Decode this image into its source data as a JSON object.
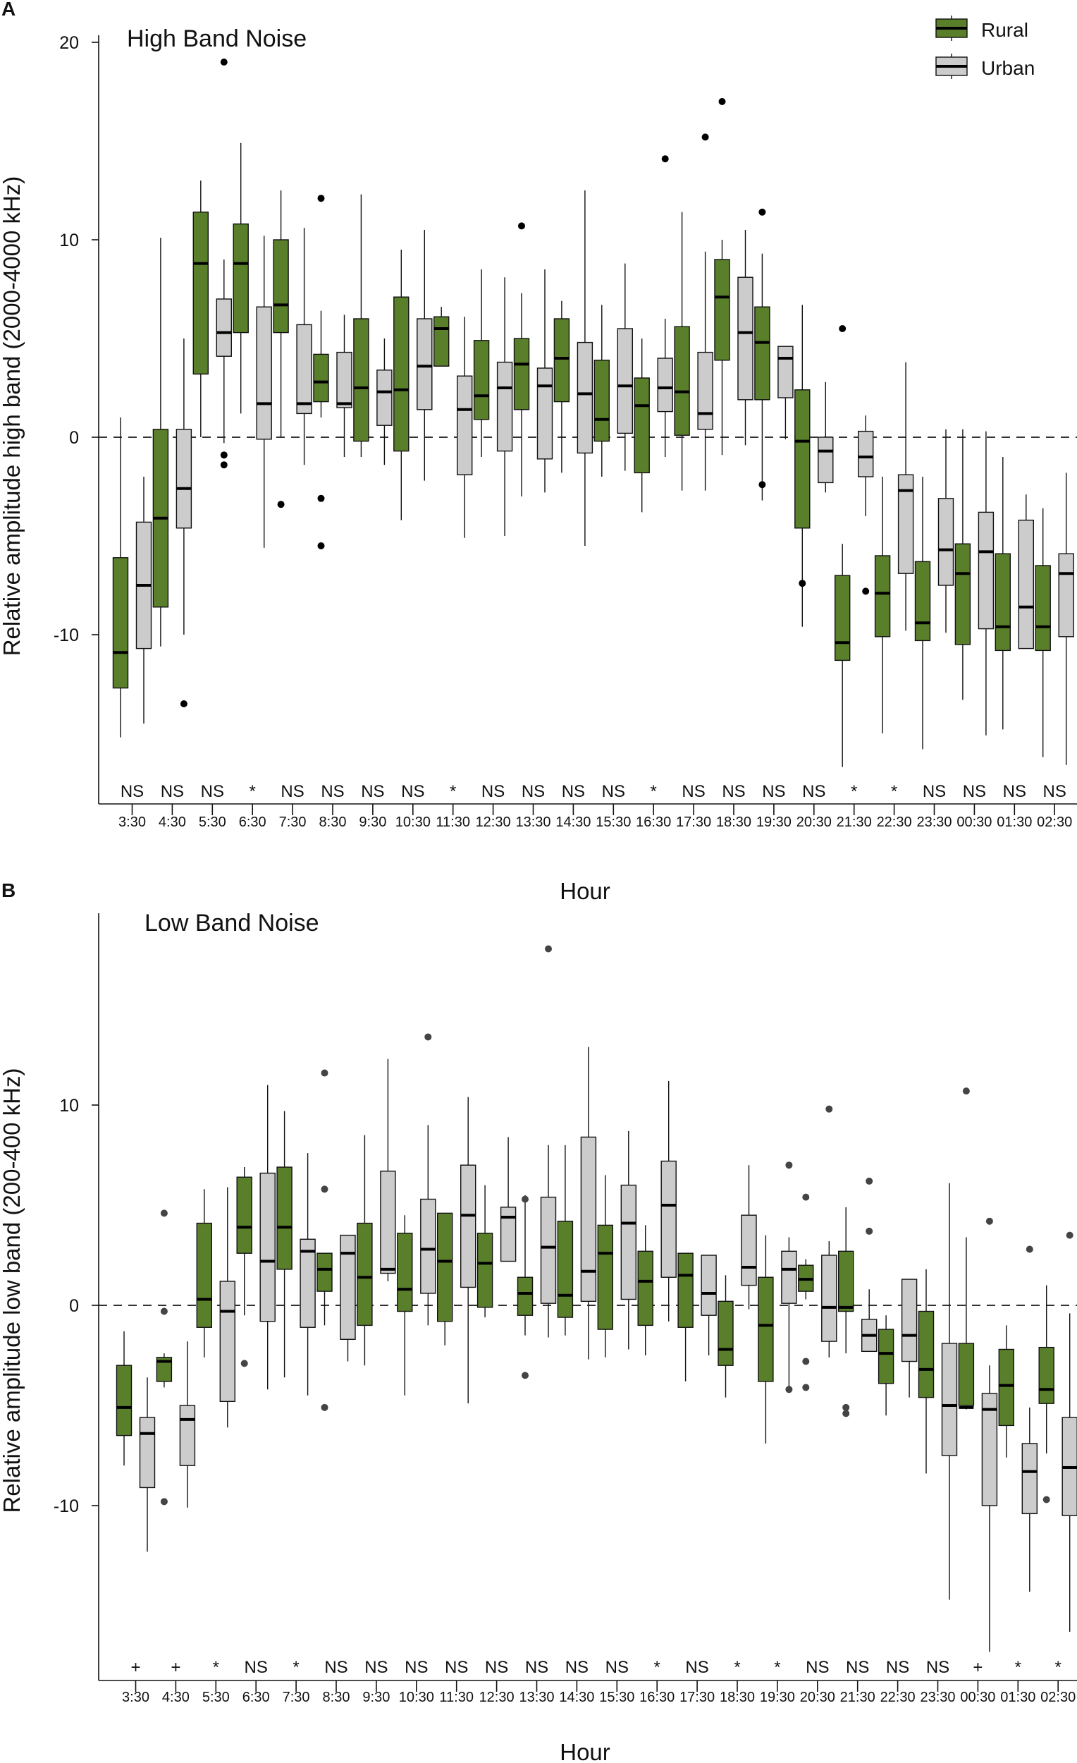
{
  "chart_data": [
    {
      "type": "boxplot",
      "panel_letter": "A",
      "title": "High Band Noise",
      "xlabel": "Hour",
      "ylabel": "Relative amplitude high band (2000-4000 kHz)",
      "ylim": [
        -18,
        21
      ],
      "yticks": [
        -10,
        0,
        10,
        20
      ],
      "zero_reference_line": 0,
      "legend_position": "top-right",
      "categories": [
        "3:30",
        "4:30",
        "5:30",
        "6:30",
        "7:30",
        "8:30",
        "9:30",
        "10:30",
        "11:30",
        "12:30",
        "13:30",
        "14:30",
        "15:30",
        "16:30",
        "17:30",
        "18:30",
        "19:30",
        "20:30",
        "21:30",
        "22:30",
        "23:30",
        "00:30",
        "01:30",
        "02:30"
      ],
      "significance": [
        "NS",
        "NS",
        "NS",
        "*",
        "NS",
        "NS",
        "NS",
        "NS",
        "*",
        "NS",
        "NS",
        "NS",
        "NS",
        "*",
        "NS",
        "NS",
        "NS",
        "NS",
        "*",
        "*",
        "NS",
        "NS",
        "NS",
        "NS"
      ],
      "series": [
        {
          "name": "Rural",
          "color": "#5a7f2b",
          "boxes": [
            [
              -15.2,
              -12.7,
              -10.9,
              -6.1,
              1.0
            ],
            [
              -10.6,
              -8.6,
              -4.1,
              0.4,
              10.1
            ],
            [
              0.0,
              3.2,
              8.8,
              11.4,
              13.0
            ],
            [
              1.2,
              5.3,
              8.8,
              10.8,
              14.9
            ],
            [
              0.0,
              5.3,
              6.7,
              10.0,
              12.5
            ],
            [
              1.0,
              1.8,
              2.8,
              4.2,
              6.4
            ],
            [
              -1.0,
              -0.2,
              2.5,
              6.0,
              12.3
            ],
            [
              -4.2,
              -0.7,
              2.4,
              7.1,
              9.5
            ],
            [
              3.6,
              3.6,
              5.5,
              6.1,
              6.6
            ],
            [
              -1.0,
              0.9,
              2.1,
              4.9,
              8.5
            ],
            [
              -3.0,
              1.4,
              3.7,
              5.0,
              7.3
            ],
            [
              -1.8,
              1.8,
              4.0,
              6.0,
              6.9
            ],
            [
              -2.0,
              -0.2,
              0.9,
              3.9,
              6.7
            ],
            [
              -3.8,
              -1.8,
              1.6,
              3.0,
              5.0
            ],
            [
              -2.7,
              0.1,
              2.3,
              5.6,
              11.4
            ],
            [
              -0.9,
              3.9,
              7.1,
              9.0,
              10.0
            ],
            [
              -3.2,
              1.9,
              4.8,
              6.6,
              9.3
            ],
            [
              -9.6,
              -4.6,
              -0.2,
              2.4,
              6.7
            ],
            [
              -16.7,
              -11.3,
              -10.4,
              -7.0,
              -5.4
            ],
            [
              -15.0,
              -10.1,
              -7.9,
              -6.0,
              -2.0
            ],
            [
              -15.8,
              -10.3,
              -9.4,
              -6.3,
              -2.0
            ],
            [
              -13.3,
              -10.5,
              -6.9,
              -5.4,
              0.4
            ],
            [
              -14.8,
              -10.8,
              -9.6,
              -5.9,
              -1.0
            ],
            [
              -16.2,
              -10.8,
              -9.6,
              -6.5,
              -3.6
            ]
          ],
          "outliers": [
            [],
            [],
            [],
            [],
            [
              -3.4
            ],
            [
              12.1,
              -3.1,
              -5.5
            ],
            [],
            [],
            [],
            [],
            [
              10.7
            ],
            [],
            [],
            [],
            [],
            [
              17.0
            ],
            [
              11.4,
              -2.4
            ],
            [
              -7.4
            ],
            [
              5.5
            ],
            [],
            [],
            [],
            [],
            []
          ]
        },
        {
          "name": "Urban",
          "color": "#cccccc",
          "boxes": [
            [
              -14.5,
              -10.7,
              -7.5,
              -4.3,
              -2.0
            ],
            [
              -10.0,
              -4.6,
              -2.6,
              0.4,
              5.0
            ],
            [
              -0.3,
              4.1,
              5.3,
              7.0,
              9.0
            ],
            [
              -5.6,
              -0.1,
              1.7,
              6.6,
              10.2
            ],
            [
              -1.4,
              1.2,
              1.7,
              5.7,
              10.6
            ],
            [
              -1.0,
              1.5,
              1.7,
              4.3,
              6.2
            ],
            [
              -1.4,
              0.6,
              2.3,
              3.4,
              5.0
            ],
            [
              -2.2,
              1.4,
              3.6,
              6.0,
              10.5
            ],
            [
              -5.1,
              -1.9,
              1.4,
              3.1,
              6.1
            ],
            [
              -5.0,
              -0.7,
              2.5,
              3.8,
              8.1
            ],
            [
              -2.8,
              -1.1,
              2.6,
              3.5,
              8.5
            ],
            [
              -5.5,
              -0.8,
              2.2,
              4.8,
              12.5
            ],
            [
              -1.7,
              0.2,
              2.6,
              5.5,
              8.8
            ],
            [
              -1.0,
              1.3,
              2.5,
              4.0,
              6.0
            ],
            [
              -2.7,
              0.4,
              1.2,
              4.3,
              9.4
            ],
            [
              -0.4,
              1.9,
              5.3,
              8.1,
              10.5
            ],
            [
              -0.1,
              2.0,
              4.0,
              4.6,
              4.6
            ],
            [
              -2.8,
              -2.3,
              -0.7,
              0.0,
              2.8
            ],
            [
              -4.0,
              -2.0,
              -1.0,
              0.3,
              1.1
            ],
            [
              -9.8,
              -6.9,
              -2.7,
              -1.9,
              3.8
            ],
            [
              -9.9,
              -7.5,
              -5.7,
              -3.1,
              0.4
            ],
            [
              -15.1,
              -9.7,
              -5.8,
              -3.8,
              0.3
            ],
            [
              -10.7,
              -10.7,
              -8.6,
              -4.2,
              -2.9
            ],
            [
              -16.6,
              -10.1,
              -6.9,
              -5.9,
              -1.8
            ]
          ],
          "outliers": [
            [],
            [
              -13.5
            ],
            [
              19.0,
              -0.9,
              -1.4
            ],
            [],
            [],
            [],
            [],
            [],
            [],
            [],
            [],
            [],
            [],
            [
              14.1
            ],
            [
              15.2
            ],
            [],
            [],
            [],
            [
              -7.8
            ],
            [],
            [],
            [],
            [],
            []
          ]
        }
      ]
    },
    {
      "type": "boxplot",
      "panel_letter": "B",
      "title": "Low Band Noise",
      "xlabel": "Hour",
      "ylabel": "Relative amplitude low  band (200-400 kHz)",
      "ylim": [
        -18,
        20
      ],
      "yticks": [
        -10,
        0,
        10
      ],
      "zero_reference_line": 0,
      "categories": [
        "3:30",
        "4:30",
        "5:30",
        "6:30",
        "7:30",
        "8:30",
        "9:30",
        "10:30",
        "11:30",
        "12:30",
        "13:30",
        "14:30",
        "15:30",
        "16:30",
        "17:30",
        "18:30",
        "19:30",
        "20:30",
        "21:30",
        "22:30",
        "23:30",
        "00:30",
        "01:30",
        "02:30"
      ],
      "significance": [
        "+",
        "+",
        "*",
        "NS",
        "*",
        "NS",
        "NS",
        "NS",
        "NS",
        "NS",
        "NS",
        "NS",
        "NS",
        "*",
        "NS",
        "*",
        "*",
        "NS",
        "NS",
        "NS",
        "NS",
        "+",
        "*",
        "*"
      ],
      "series": [
        {
          "name": "Rural",
          "color": "#5a7f2b",
          "boxes": [
            [
              -8.0,
              -6.5,
              -5.1,
              -3.0,
              -1.3
            ],
            [
              -4.1,
              -3.8,
              -2.8,
              -2.6,
              -2.4
            ],
            [
              -2.6,
              -1.1,
              0.3,
              4.1,
              5.8
            ],
            [
              -0.5,
              2.6,
              3.9,
              6.4,
              6.9
            ],
            [
              -3.6,
              1.8,
              3.9,
              6.9,
              9.7
            ],
            [
              -1.0,
              0.7,
              1.8,
              2.6,
              2.6
            ],
            [
              -3.0,
              -1.0,
              1.4,
              4.1,
              8.5
            ],
            [
              -4.5,
              -0.3,
              0.8,
              3.6,
              4.5
            ],
            [
              -2.0,
              -0.8,
              2.2,
              4.6,
              4.6
            ],
            [
              -0.6,
              -0.1,
              2.1,
              3.6,
              6.0
            ],
            [
              -1.5,
              -0.5,
              0.6,
              1.4,
              5.5
            ],
            [
              -1.5,
              -0.6,
              0.5,
              4.2,
              8.0
            ],
            [
              -2.6,
              -1.2,
              2.6,
              4.0,
              6.5
            ],
            [
              -2.5,
              -1.0,
              1.2,
              2.7,
              4.0
            ],
            [
              -3.8,
              -1.1,
              1.5,
              2.6,
              2.6
            ],
            [
              -4.6,
              -3.0,
              -2.2,
              0.2,
              1.5
            ],
            [
              -6.9,
              -3.8,
              -1.0,
              1.4,
              3.5
            ],
            [
              0.3,
              0.7,
              1.3,
              2.0,
              2.3
            ],
            [
              -2.4,
              -0.3,
              -0.1,
              2.7,
              4.9
            ],
            [
              -5.5,
              -3.9,
              -2.4,
              -1.2,
              -0.5
            ],
            [
              -8.4,
              -4.6,
              -3.2,
              -0.3,
              1.8
            ],
            [
              -5.2,
              -5.0,
              -5.1,
              -1.9,
              3.4
            ],
            [
              -7.6,
              -6.0,
              -4.0,
              -2.2,
              -1.0
            ],
            [
              -7.4,
              -4.9,
              -4.2,
              -2.1,
              1.0
            ]
          ],
          "outliers": [
            [],
            [
              4.6,
              -0.3,
              -9.8
            ],
            [],
            [
              -2.9
            ],
            [],
            [
              11.6,
              5.8,
              -5.1
            ],
            [],
            [],
            [],
            [],
            [
              5.3,
              -3.5
            ],
            [],
            [],
            [],
            [],
            [],
            [],
            [
              5.4,
              -2.8,
              -4.1
            ],
            [
              -5.1,
              -5.4
            ],
            [],
            [],
            [
              10.7
            ],
            [],
            [
              -9.7
            ]
          ]
        },
        {
          "name": "Urban",
          "color": "#cccccc",
          "boxes": [
            [
              -12.3,
              -9.1,
              -6.4,
              -5.6,
              -3.6
            ],
            [
              -10.1,
              -8.0,
              -5.7,
              -5.0,
              -1.8
            ],
            [
              -6.1,
              -4.8,
              -0.3,
              1.2,
              5.9
            ],
            [
              -4.2,
              -0.8,
              2.2,
              6.6,
              11.0
            ],
            [
              -4.5,
              -1.1,
              2.7,
              3.3,
              7.6
            ],
            [
              -2.8,
              -1.7,
              2.6,
              3.5,
              3.5
            ],
            [
              1.2,
              1.6,
              1.8,
              6.7,
              12.3
            ],
            [
              -1.0,
              0.6,
              2.8,
              5.3,
              9.0
            ],
            [
              -4.9,
              0.9,
              4.5,
              7.0,
              10.4
            ],
            [
              2.2,
              2.2,
              4.4,
              4.9,
              8.4
            ],
            [
              -1.6,
              0.1,
              2.9,
              5.4,
              8.0
            ],
            [
              -2.7,
              0.2,
              1.7,
              8.4,
              12.9
            ],
            [
              -2.2,
              0.3,
              4.1,
              6.0,
              8.7
            ],
            [
              -0.8,
              1.4,
              5.0,
              7.2,
              11.2
            ],
            [
              -2.5,
              -0.5,
              0.6,
              2.5,
              2.5
            ],
            [
              -0.2,
              1.0,
              1.9,
              4.5,
              7.0
            ],
            [
              -4.1,
              0.1,
              1.8,
              2.7,
              3.4
            ],
            [
              -2.6,
              -1.8,
              -0.1,
              2.5,
              3.2
            ],
            [
              -2.3,
              -2.3,
              -1.5,
              -0.7,
              0.8
            ],
            [
              -4.6,
              -2.8,
              -1.5,
              1.3,
              1.3
            ],
            [
              -14.7,
              -7.5,
              -5.0,
              -1.9,
              6.1
            ],
            [
              -17.3,
              -10.0,
              -5.2,
              -4.4,
              -3.0
            ],
            [
              -14.3,
              -10.4,
              -8.3,
              -6.9,
              -5.1
            ],
            [
              -16.3,
              -10.5,
              -8.1,
              -5.6,
              -0.4
            ]
          ],
          "outliers": [
            [],
            [],
            [],
            [],
            [],
            [],
            [],
            [
              13.4
            ],
            [],
            [],
            [
              17.8
            ],
            [],
            [],
            [],
            [],
            [],
            [
              7.0,
              -4.2
            ],
            [
              9.8
            ],
            [
              6.2,
              3.7
            ],
            [],
            [],
            [
              4.2
            ],
            [
              2.8
            ],
            [
              3.5
            ]
          ]
        }
      ]
    }
  ]
}
